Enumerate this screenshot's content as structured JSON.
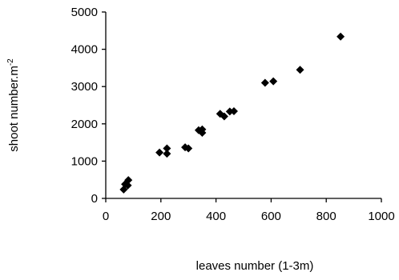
{
  "chart_data": {
    "type": "scatter",
    "title": "",
    "xlabel": "leaves number (1-3m)",
    "ylabel_main": "shoot number.m",
    "ylabel_superscript": "-2",
    "xlim": [
      0,
      1000
    ],
    "ylim": [
      0,
      5000
    ],
    "x_ticks": [
      0,
      200,
      400,
      600,
      800,
      1000
    ],
    "y_ticks": [
      0,
      1000,
      2000,
      3000,
      4000,
      5000
    ],
    "grid": false,
    "legend": "none",
    "marker": "diamond",
    "marker_color": "#000000",
    "series": [
      {
        "points": [
          {
            "x": 65,
            "y": 240
          },
          {
            "x": 70,
            "y": 380
          },
          {
            "x": 80,
            "y": 350
          },
          {
            "x": 82,
            "y": 490
          },
          {
            "x": 195,
            "y": 1230
          },
          {
            "x": 222,
            "y": 1200
          },
          {
            "x": 222,
            "y": 1340
          },
          {
            "x": 288,
            "y": 1370
          },
          {
            "x": 300,
            "y": 1340
          },
          {
            "x": 337,
            "y": 1830
          },
          {
            "x": 350,
            "y": 1850
          },
          {
            "x": 350,
            "y": 1760
          },
          {
            "x": 415,
            "y": 2270
          },
          {
            "x": 430,
            "y": 2200
          },
          {
            "x": 450,
            "y": 2330
          },
          {
            "x": 465,
            "y": 2340
          },
          {
            "x": 578,
            "y": 3100
          },
          {
            "x": 608,
            "y": 3140
          },
          {
            "x": 705,
            "y": 3450
          },
          {
            "x": 852,
            "y": 4340
          }
        ]
      }
    ]
  }
}
